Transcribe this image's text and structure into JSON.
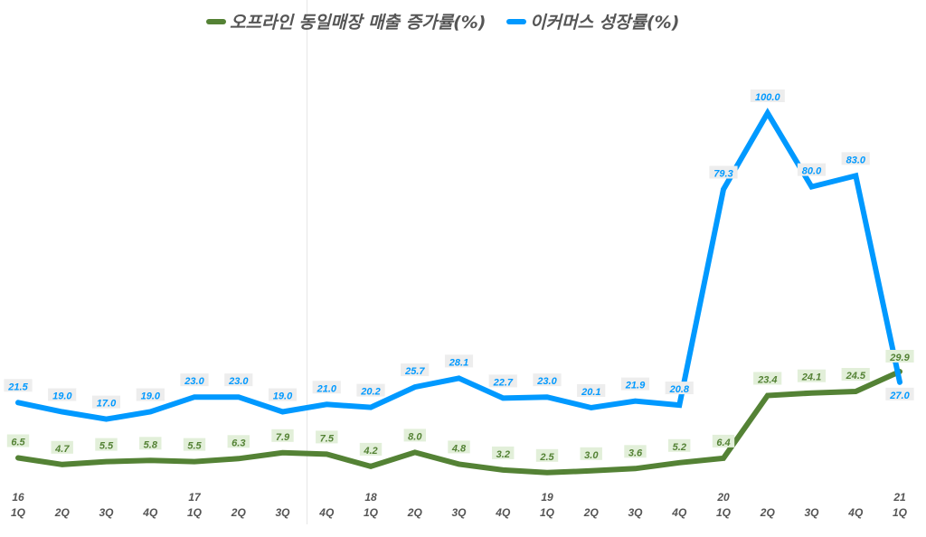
{
  "legend": {
    "offline": "오프라인 동일매장 매출 증가률(%)",
    "ecommerce": "이커머스 성장률(%)"
  },
  "colors": {
    "offline": "#548235",
    "ecommerce": "#0099ff",
    "offline_label_bg": "#e2efd9",
    "ecommerce_label_bg": "#ededed",
    "axis_text": "#555555"
  },
  "chart_data": {
    "type": "line",
    "title": "",
    "xlabel": "",
    "ylabel": "",
    "grid": false,
    "legend_position": "top",
    "categories": [
      "16 1Q",
      "2Q",
      "3Q",
      "4Q",
      "17 1Q",
      "2Q",
      "3Q",
      "4Q",
      "18 1Q",
      "2Q",
      "3Q",
      "4Q",
      "19 1Q",
      "2Q",
      "3Q",
      "4Q",
      "20 1Q",
      "2Q",
      "3Q",
      "4Q",
      "21 1Q"
    ],
    "x_quarter_labels": [
      "1Q",
      "2Q",
      "3Q",
      "4Q",
      "1Q",
      "2Q",
      "3Q",
      "4Q",
      "1Q",
      "2Q",
      "3Q",
      "4Q",
      "1Q",
      "2Q",
      "3Q",
      "4Q",
      "1Q",
      "2Q",
      "3Q",
      "4Q",
      "1Q"
    ],
    "x_year_labels": [
      "16",
      "",
      "",
      "",
      "17",
      "",
      "",
      "",
      "18",
      "",
      "",
      "",
      "19",
      "",
      "",
      "",
      "20",
      "",
      "",
      "",
      "21"
    ],
    "series": [
      {
        "name": "오프라인 동일매장 매출 증가률(%)",
        "color": "#548235",
        "values": [
          6.5,
          4.7,
          5.5,
          5.8,
          5.5,
          6.3,
          7.9,
          7.5,
          4.2,
          8.0,
          4.8,
          3.2,
          2.5,
          3.0,
          3.6,
          5.2,
          6.4,
          23.4,
          24.1,
          24.5,
          29.9
        ]
      },
      {
        "name": "이커머스 성장률(%)",
        "color": "#0099ff",
        "values": [
          21.5,
          19.0,
          17.0,
          19.0,
          23.0,
          23.0,
          19.0,
          21.0,
          20.2,
          25.7,
          28.1,
          22.7,
          23.0,
          20.1,
          21.9,
          20.8,
          79.3,
          100.0,
          80.0,
          83.0,
          27.0
        ]
      }
    ],
    "ylim": [
      0,
      105
    ]
  }
}
